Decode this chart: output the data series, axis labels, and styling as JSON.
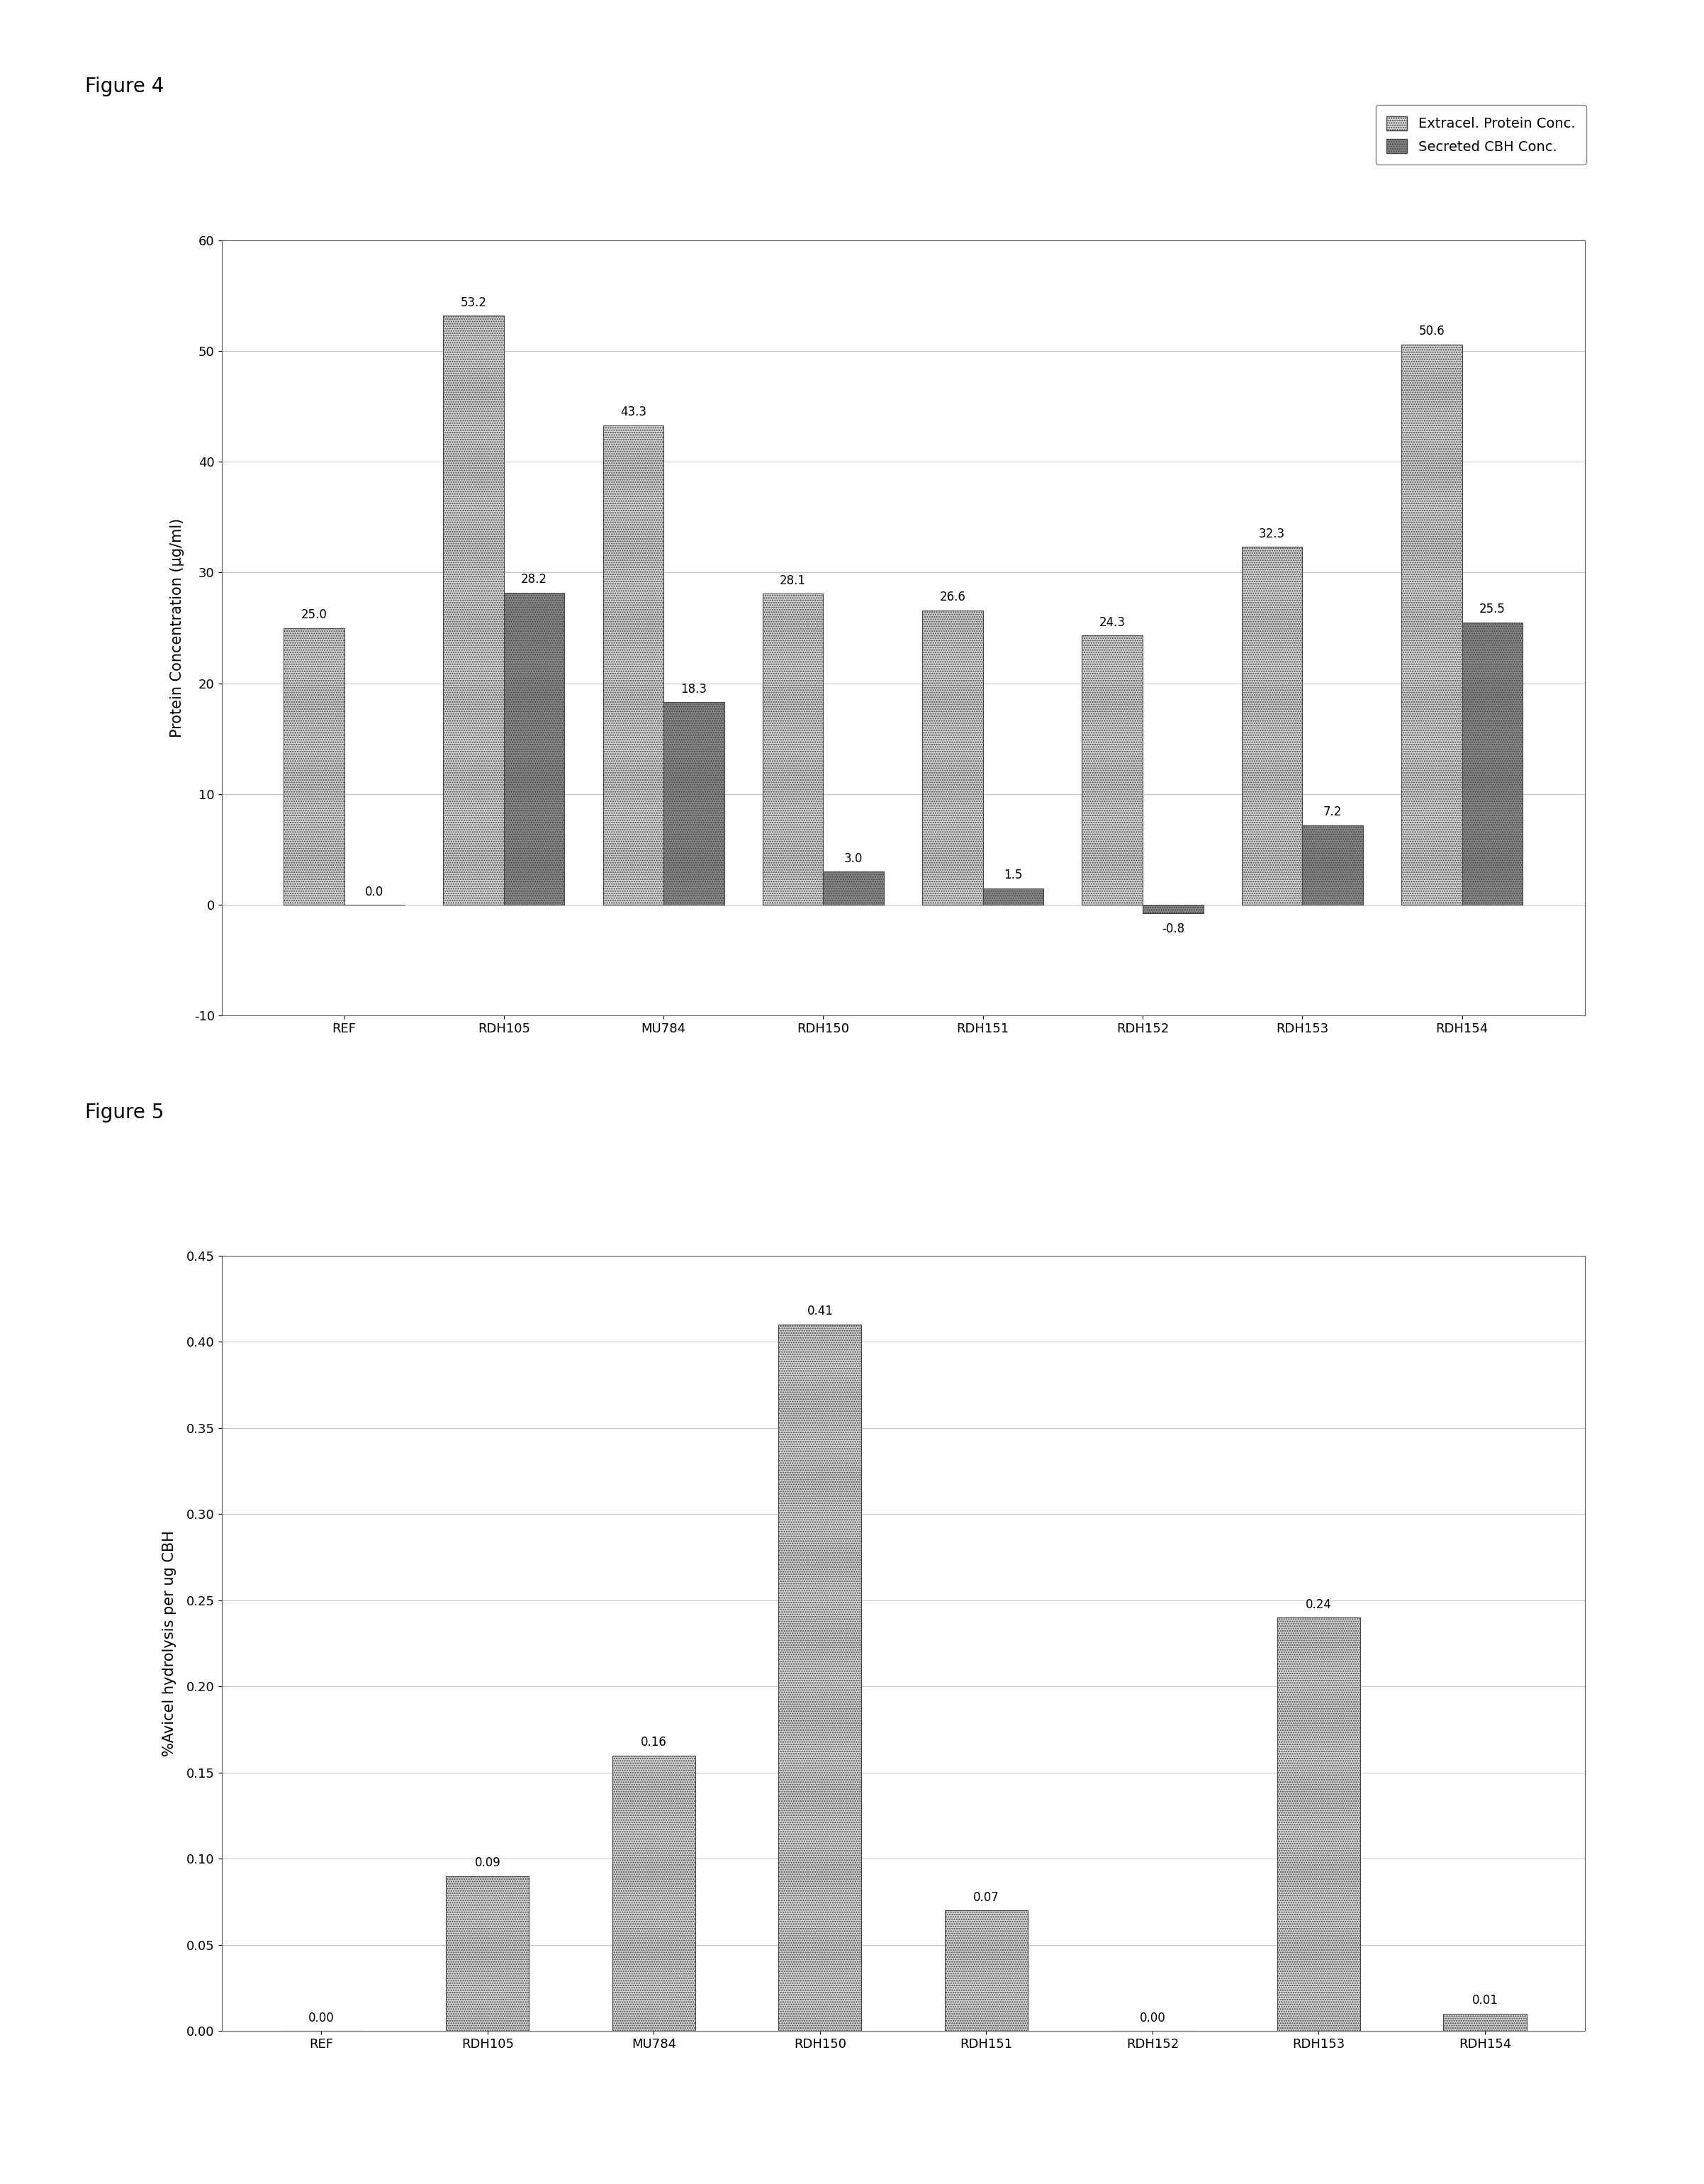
{
  "fig4": {
    "title": "Figure 4",
    "categories": [
      "REF",
      "RDH105",
      "MU784",
      "RDH150",
      "RDH151",
      "RDH152",
      "RDH153",
      "RDH154"
    ],
    "extracel_protein": [
      25.0,
      53.2,
      43.3,
      28.1,
      26.6,
      24.3,
      32.3,
      50.6
    ],
    "secreted_cbh": [
      0.0,
      28.2,
      18.3,
      3.0,
      1.5,
      -0.8,
      7.2,
      25.5
    ],
    "ylabel": "Protein Concentration (µg/ml)",
    "ylim": [
      -10,
      60
    ],
    "yticks": [
      -10,
      0,
      10,
      20,
      30,
      40,
      50,
      60
    ],
    "legend_labels": [
      "Extracel. Protein Conc.",
      "Secreted CBH Conc."
    ],
    "bar_color_light": "#d4d4d4",
    "bar_color_dark": "#888888",
    "bar_width": 0.38,
    "grid": true
  },
  "fig5": {
    "title": "Figure 5",
    "categories": [
      "REF",
      "RDH105",
      "MU784",
      "RDH150",
      "RDH151",
      "RDH152",
      "RDH153",
      "RDH154"
    ],
    "values": [
      0.0,
      0.09,
      0.16,
      0.41,
      0.07,
      0.0,
      0.24,
      0.01
    ],
    "ylabel": "%Avicel hydrolysis per ug CBH",
    "ylim": [
      0,
      0.45
    ],
    "yticks": [
      0.0,
      0.05,
      0.1,
      0.15,
      0.2,
      0.25,
      0.3,
      0.35,
      0.4,
      0.45
    ],
    "bar_color": "#d4d4d4",
    "bar_width": 0.5,
    "grid": true
  },
  "background_color": "#ffffff",
  "figure_label_fontsize": 20,
  "axis_label_fontsize": 15,
  "tick_fontsize": 13,
  "annotation_fontsize": 12,
  "legend_fontsize": 14
}
